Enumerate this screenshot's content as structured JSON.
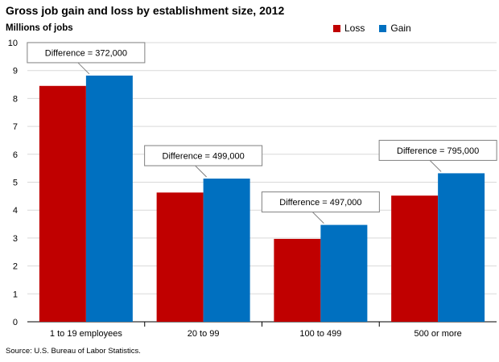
{
  "title": "Gross job gain and loss by establishment size, 2012",
  "ylabel": "Millions of jobs",
  "source": "Source: U.S. Bureau of Labor Statistics.",
  "colors": {
    "loss": "#C00000",
    "gain": "#0070C0"
  },
  "legend": [
    {
      "label": "Loss",
      "key": "loss"
    },
    {
      "label": "Gain",
      "key": "gain"
    }
  ],
  "chart_data": {
    "type": "bar",
    "title": "Gross job gain and loss by establishment size, 2012",
    "ylabel": "Millions of jobs",
    "xlabel": "",
    "ylim": [
      0,
      10
    ],
    "yticks": [
      "0",
      "1",
      "2",
      "3",
      "4",
      "5",
      "6",
      "7",
      "8",
      "9",
      "10"
    ],
    "grid": true,
    "legend_position": "top-right",
    "categories": [
      "1 to 19 employees",
      "20 to 99",
      "100 to 499",
      "500 or more"
    ],
    "series": [
      {
        "name": "Loss",
        "values": [
          8.45,
          4.63,
          2.97,
          4.52
        ]
      },
      {
        "name": "Gain",
        "values": [
          8.82,
          5.13,
          3.47,
          5.32
        ]
      }
    ],
    "annotations": [
      "Difference = 372,000",
      "Difference = 499,000",
      "Difference = 497,000",
      "Difference = 795,000"
    ]
  }
}
